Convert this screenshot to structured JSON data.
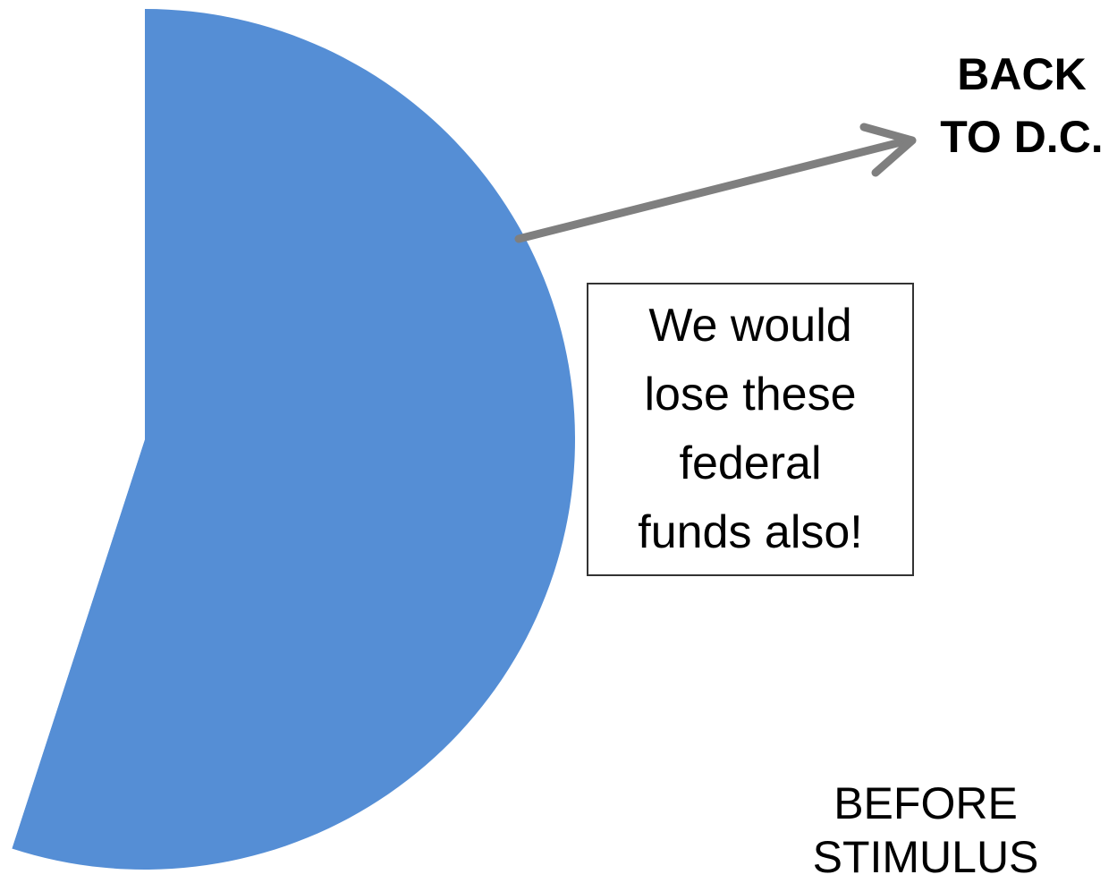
{
  "chart_data": {
    "type": "pie",
    "title": "BEFORE STIMULUS",
    "slices": [
      {
        "label": "",
        "value": 55,
        "color": "#558ed5"
      },
      {
        "label": "",
        "value": 45,
        "color": "#ffffff"
      }
    ],
    "start_angle_deg": 0,
    "direction": "clockwise",
    "arrow_color": "#7f7f7f"
  },
  "annotations": {
    "arrow_label": "BACK TO D.C.",
    "callout": "We would lose these federal funds also!"
  }
}
